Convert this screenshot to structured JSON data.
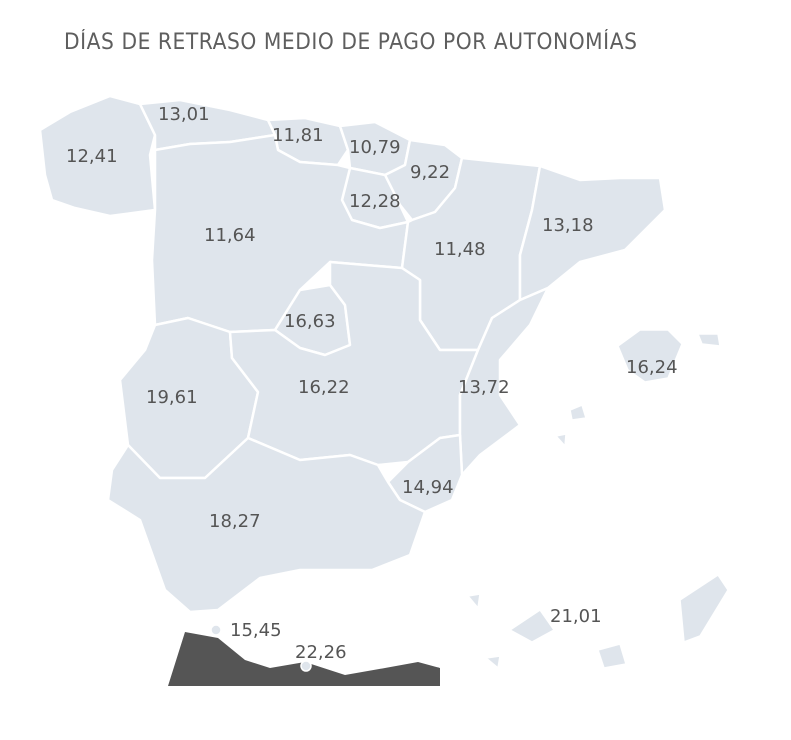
{
  "title": "DÍAS DE RETRASO MEDIO DE PAGO POR AUTONOMÍAS",
  "colors": {
    "region_fill": "#dfe5ec",
    "border": "#ffffff",
    "label_text": "#555555",
    "inset_background": "#555555"
  },
  "regions": [
    {
      "id": "galicia",
      "value": "12,41"
    },
    {
      "id": "asturias",
      "value": "13,01"
    },
    {
      "id": "cantabria",
      "value": "11,81"
    },
    {
      "id": "pais-vasco",
      "value": "10,79"
    },
    {
      "id": "navarra",
      "value": "9,22"
    },
    {
      "id": "la-rioja",
      "value": "12,28"
    },
    {
      "id": "castilla-y-leon",
      "value": "11,64"
    },
    {
      "id": "aragon",
      "value": "11,48"
    },
    {
      "id": "cataluna",
      "value": "13,18"
    },
    {
      "id": "madrid",
      "value": "16,63"
    },
    {
      "id": "extremadura",
      "value": "19,61"
    },
    {
      "id": "castilla-la-mancha",
      "value": "16,22"
    },
    {
      "id": "valencia",
      "value": "13,72"
    },
    {
      "id": "baleares",
      "value": "16,24"
    },
    {
      "id": "murcia",
      "value": "14,94"
    },
    {
      "id": "andalucia",
      "value": "18,27"
    },
    {
      "id": "ceuta",
      "value": "15,45"
    },
    {
      "id": "melilla",
      "value": "22,26"
    },
    {
      "id": "canarias",
      "value": "21,01"
    }
  ]
}
